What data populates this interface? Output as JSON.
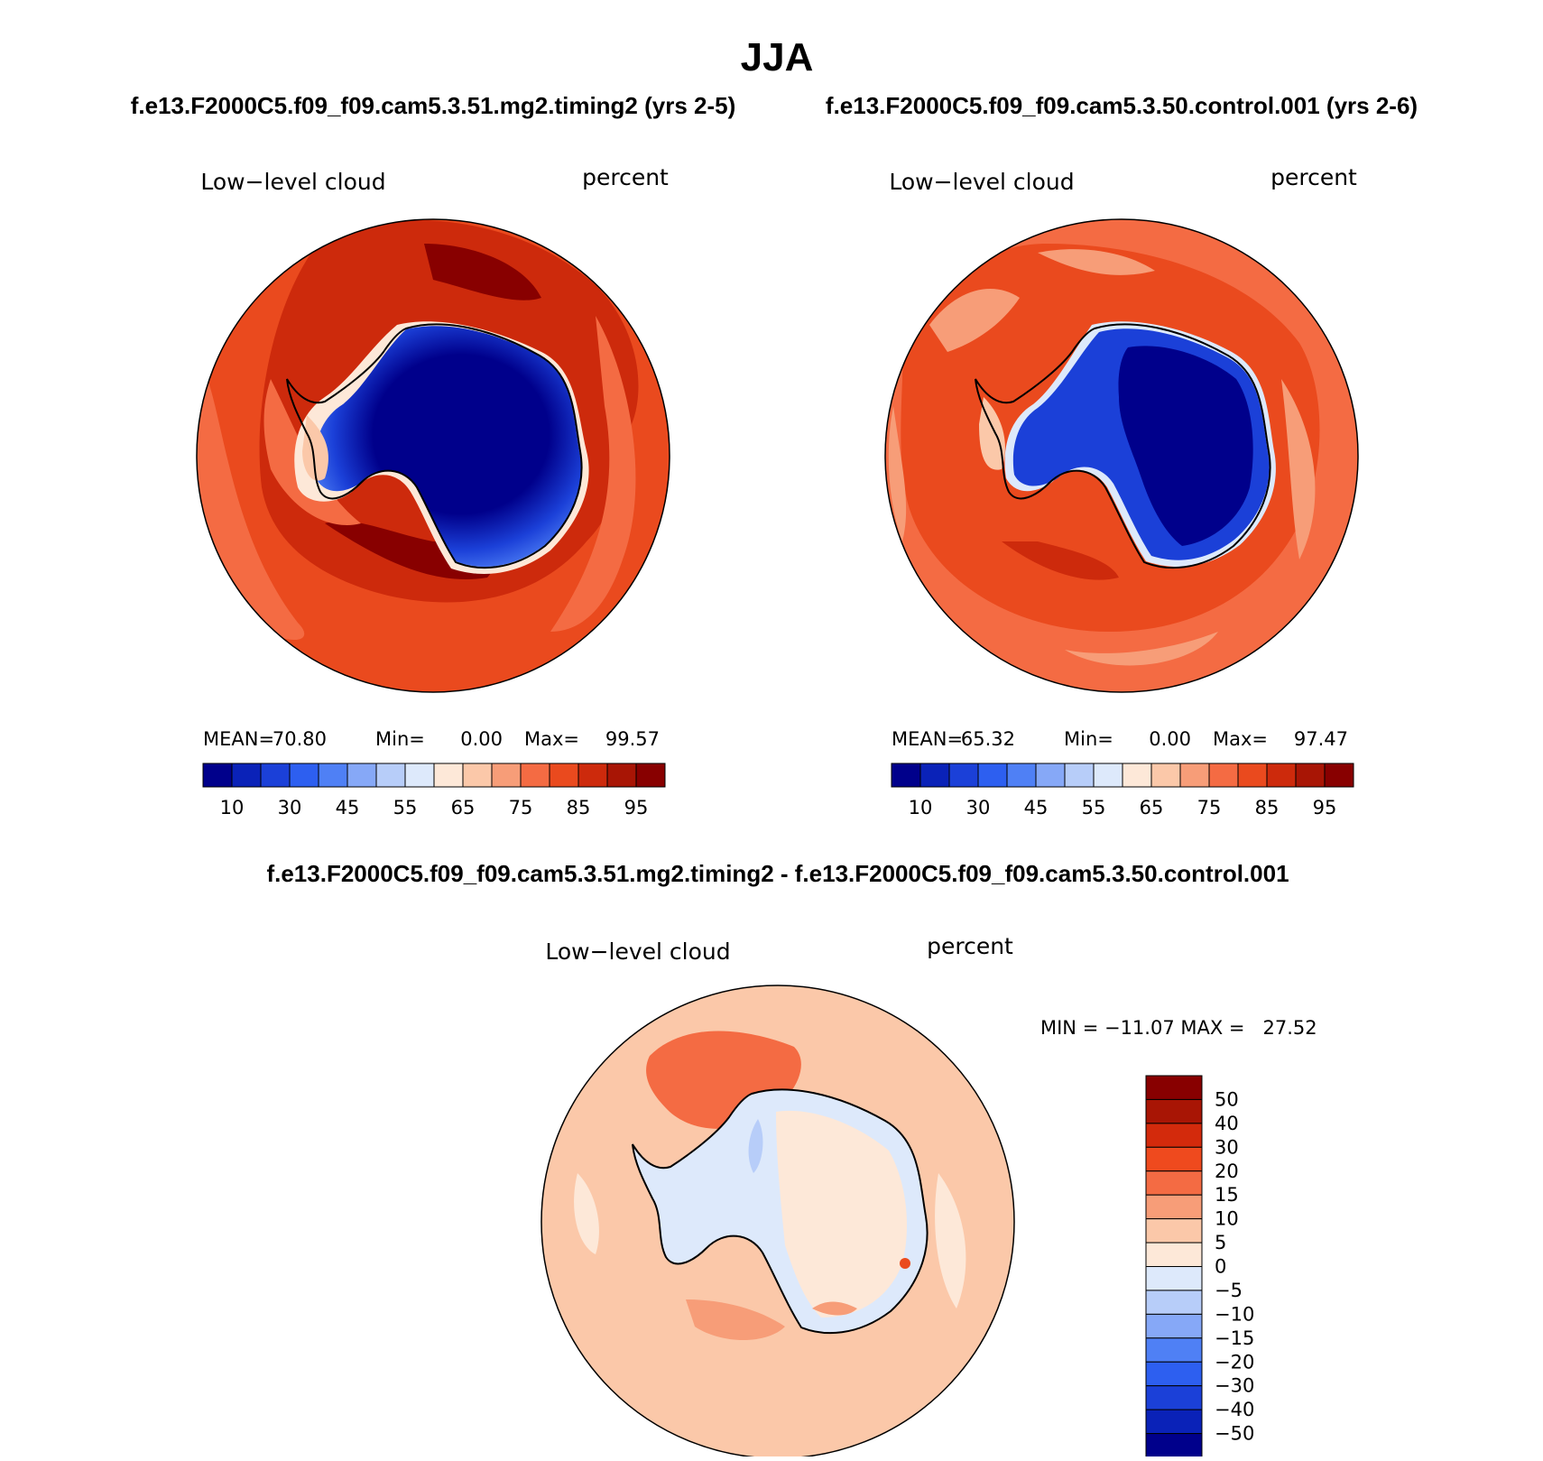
{
  "figure": {
    "season": "JJA",
    "case_a_title": "f.e13.F2000C5.f09_f09.cam5.3.51.mg2.timing2 (yrs 2-5)",
    "case_b_title": "f.e13.F2000C5.f09_f09.cam5.3.50.control.001 (yrs 2-6)",
    "diff_title": "f.e13.F2000C5.f09_f09.cam5.3.51.mg2.timing2 - f.e13.F2000C5.f09_f09.cam5.3.50.control.001"
  },
  "panels": [
    {
      "variable": "Low−level cloud",
      "units": "percent",
      "mean_label": "MEAN=",
      "mean": "70.80",
      "min_label": "Min=",
      "min": "0.00",
      "max_label": "Max=",
      "max": "99.57"
    },
    {
      "variable": "Low−level cloud",
      "units": "percent",
      "mean_label": "MEAN=",
      "mean": "65.32",
      "min_label": "Min=",
      "min": "0.00",
      "max_label": "Max=",
      "max": "97.47"
    }
  ],
  "diff_panel": {
    "variable": "Low−level cloud",
    "units": "percent",
    "stats": "MIN = −11.07 MAX =   27.52"
  },
  "colorbar_abs": {
    "tick_labels": [
      "10",
      "30",
      "45",
      "55",
      "65",
      "75",
      "85",
      "95"
    ],
    "colors": [
      "#00008b",
      "#0a22b8",
      "#1b40d8",
      "#2d5ff0",
      "#4f80f5",
      "#86a8f7",
      "#b7cdf9",
      "#dde9fb",
      "#fde8d8",
      "#fbc8a9",
      "#f79d78",
      "#f46b43",
      "#ea4a1e",
      "#cd2a0c",
      "#a81505",
      "#880000"
    ]
  },
  "colorbar_diff": {
    "tick_labels": [
      "50",
      "40",
      "30",
      "20",
      "15",
      "10",
      "5",
      "0",
      "−5",
      "−10",
      "−15",
      "−20",
      "−30",
      "−40",
      "−50"
    ],
    "colors": [
      "#880000",
      "#a81505",
      "#d32a0c",
      "#ef4a1e",
      "#f46b43",
      "#f79d78",
      "#fbc8a9",
      "#fde8d8",
      "#dde9fb",
      "#b7cdf9",
      "#86a8f7",
      "#4f80f5",
      "#2d5ff0",
      "#1b40d8",
      "#0a22b8",
      "#00008b"
    ]
  }
}
